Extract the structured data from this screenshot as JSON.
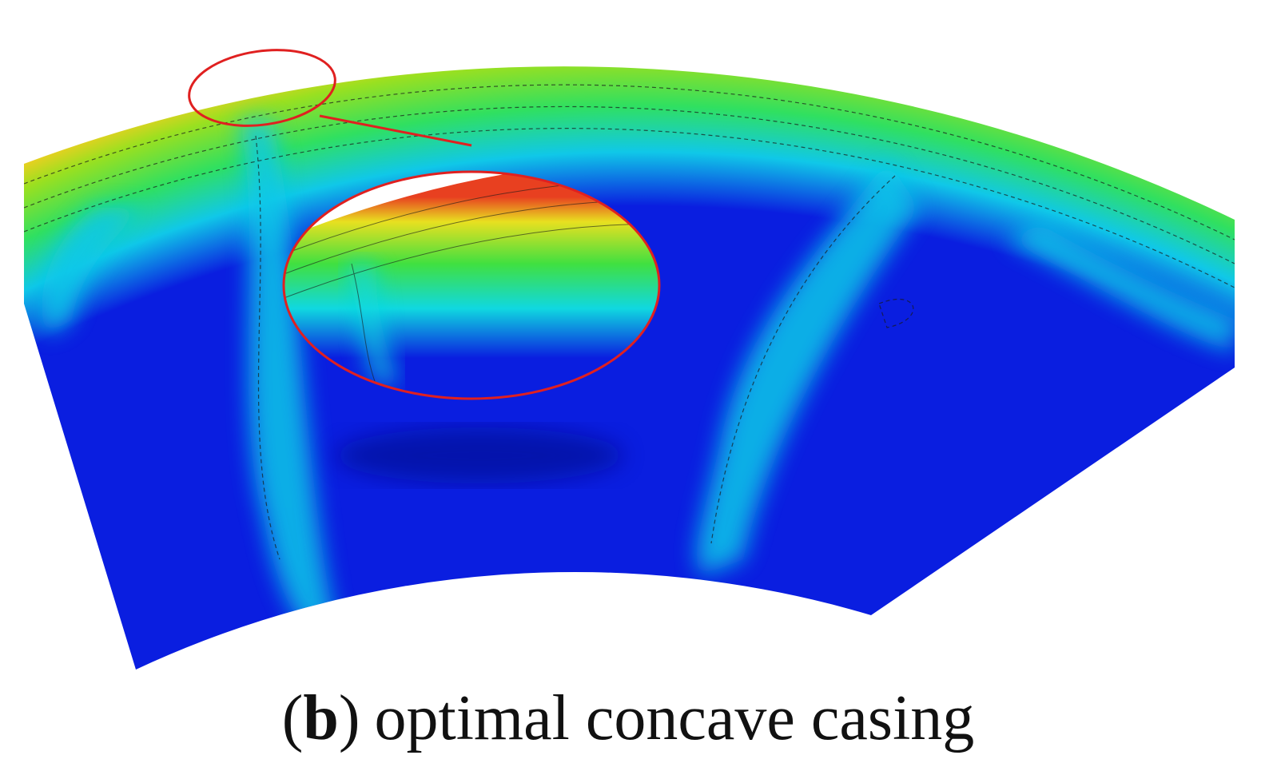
{
  "caption": {
    "open": "(",
    "label": "b",
    "close": ")",
    "text": "optimal concave casing"
  }
}
